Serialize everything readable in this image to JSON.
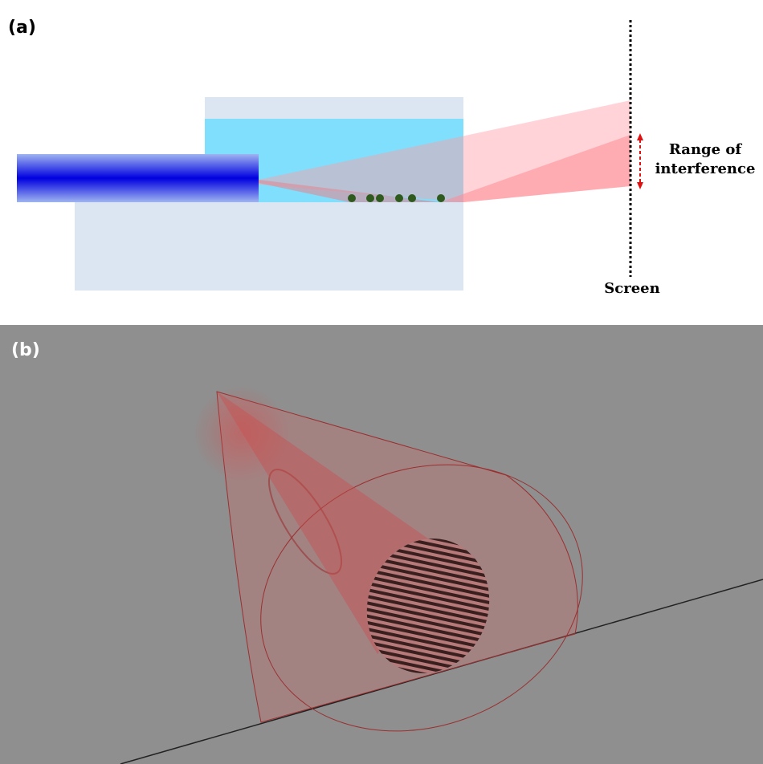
{
  "panel_a": {
    "label": "(a)",
    "annotation_lines": [
      "Range of",
      "interference"
    ],
    "screen_label": "Screen"
  },
  "panel_b": {
    "label": "(b)"
  }
}
